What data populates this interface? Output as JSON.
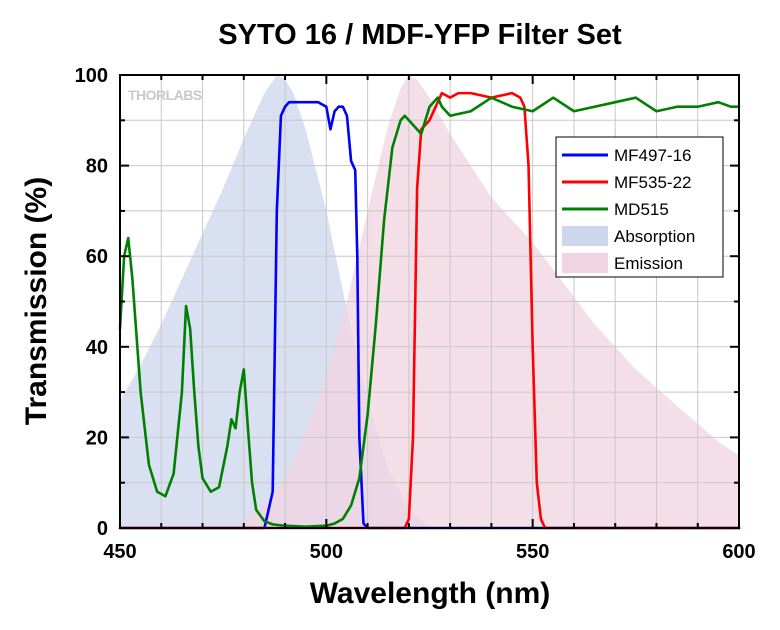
{
  "chart_data": {
    "type": "line",
    "title": "SYTO 16 / MDF-YFP Filter Set",
    "xlabel": "Wavelength (nm)",
    "ylabel": "Transmission (%)",
    "xlim": [
      450,
      600
    ],
    "ylim": [
      0,
      100
    ],
    "xticks": [
      450,
      500,
      550,
      600
    ],
    "yticks": [
      0,
      20,
      40,
      60,
      80,
      100
    ],
    "grid": true,
    "legend_position": "right",
    "watermark": "THORLABS",
    "series": [
      {
        "name": "Absorption",
        "kind": "area",
        "color": "#ccd6ec",
        "x": [
          450,
          455,
          460,
          465,
          470,
          475,
          480,
          485,
          488,
          490,
          492,
          495,
          500,
          505,
          510,
          515,
          520,
          525
        ],
        "y": [
          28,
          36,
          45,
          55,
          65,
          75,
          86,
          96,
          100,
          99,
          96,
          88,
          70,
          48,
          28,
          13,
          4,
          0
        ]
      },
      {
        "name": "Emission",
        "kind": "area",
        "color": "#f0d4e2",
        "x": [
          480,
          485,
          490,
          495,
          500,
          505,
          510,
          515,
          518,
          520,
          522,
          525,
          530,
          535,
          540,
          545,
          550,
          555,
          560,
          565,
          570,
          575,
          580,
          585,
          590,
          595,
          600
        ],
        "y": [
          2,
          5,
          11,
          21,
          34,
          50,
          70,
          89,
          97,
          100,
          99,
          95,
          87,
          80,
          73,
          68,
          63,
          57,
          51,
          45,
          40,
          35,
          31,
          27,
          23,
          19,
          16
        ]
      },
      {
        "name": "MF497-16",
        "kind": "line",
        "color": "#0000ff",
        "x": [
          450,
          485,
          487,
          488,
          489,
          490,
          491,
          492,
          495,
          498,
          500,
          501,
          502,
          503,
          504,
          505,
          506,
          506.5,
          507,
          507.5,
          508,
          509,
          510,
          600
        ],
        "y": [
          0,
          0,
          8,
          70,
          91,
          93,
          94,
          94,
          94,
          94,
          93,
          88,
          92,
          93,
          93,
          91,
          81,
          80,
          79,
          60,
          20,
          1,
          0,
          0
        ]
      },
      {
        "name": "MF535-22",
        "kind": "line",
        "color": "#ff0000",
        "x": [
          450,
          519,
          520,
          521,
          522,
          523,
          525,
          527,
          528,
          530,
          532,
          535,
          540,
          545,
          547,
          548,
          549,
          550,
          551,
          552,
          553,
          600
        ],
        "y": [
          0,
          0,
          2,
          20,
          75,
          88,
          90,
          94,
          96,
          95,
          96,
          96,
          95,
          96,
          95,
          93,
          80,
          40,
          10,
          2,
          0,
          0
        ]
      },
      {
        "name": "MD515",
        "kind": "line",
        "color": "#008000",
        "x": [
          450,
          451,
          452,
          453,
          455,
          457,
          459,
          461,
          463,
          465,
          466,
          467,
          468,
          469,
          470,
          472,
          474,
          476,
          477,
          478,
          479,
          480,
          481,
          482,
          483,
          485,
          487,
          490,
          495,
          500,
          502,
          504,
          506,
          508,
          510,
          512,
          514,
          516,
          518,
          519,
          520,
          522,
          523,
          524,
          525,
          526,
          527,
          528,
          530,
          535,
          540,
          545,
          550,
          555,
          560,
          565,
          570,
          575,
          580,
          585,
          590,
          595,
          598,
          600
        ],
        "y": [
          44,
          60,
          64,
          55,
          30,
          14,
          8,
          7,
          12,
          30,
          49,
          44,
          30,
          18,
          11,
          8,
          9,
          18,
          24,
          22,
          30,
          35,
          22,
          10,
          4,
          1.5,
          0.8,
          0.5,
          0.3,
          0.5,
          1,
          2,
          5,
          11,
          25,
          45,
          68,
          84,
          90,
          91,
          90,
          88,
          87,
          90,
          93,
          94,
          95,
          93,
          91,
          92,
          95,
          93,
          92,
          95,
          92,
          93,
          94,
          95,
          92,
          93,
          93,
          94,
          93,
          93
        ]
      }
    ]
  }
}
